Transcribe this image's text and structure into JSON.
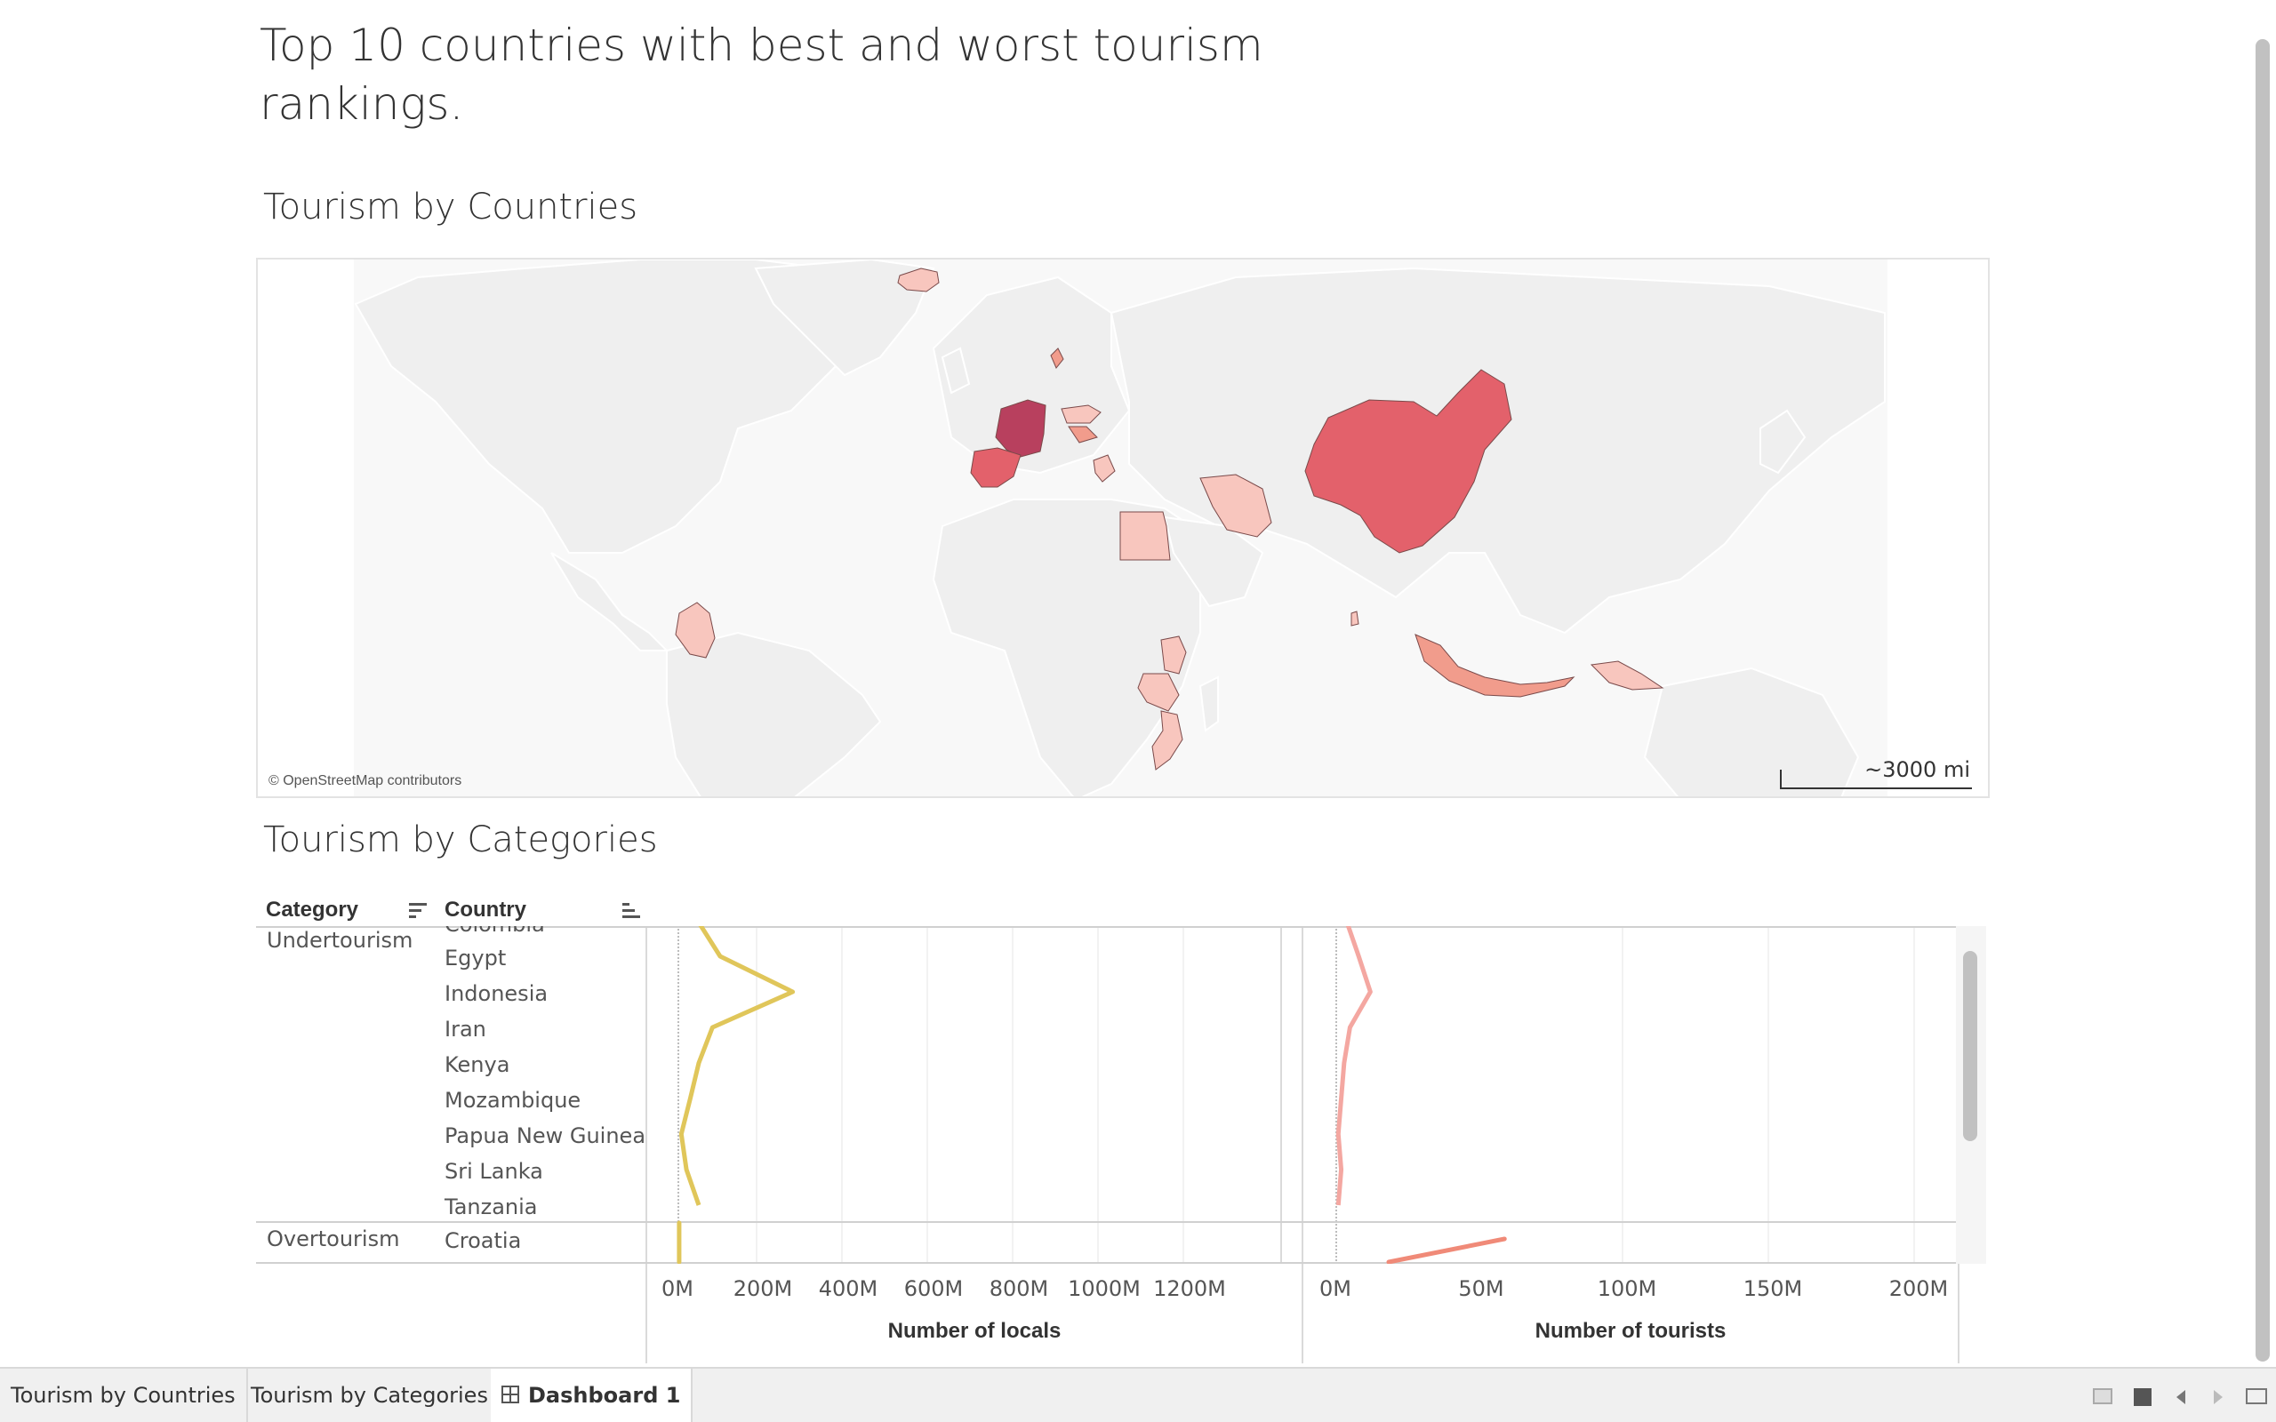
{
  "dashboard": {
    "title": "Top 10 countries with best and worst tourism rankings."
  },
  "map_section": {
    "title": "Tourism by Countries",
    "credit": "© OpenStreetMap contributors",
    "scale": "~3000 mi",
    "highlighted_countries": [
      "Iceland",
      "Denmark",
      "France",
      "Spain",
      "Austria",
      "Croatia",
      "Greece",
      "Egypt",
      "Iran",
      "China",
      "Colombia",
      "Kenya",
      "Tanzania",
      "Mozambique",
      "Sri Lanka",
      "Indonesia",
      "Papua New Guinea"
    ],
    "colors": {
      "darkest": "#b8405e",
      "dark": "#e3616b",
      "medium": "#f19c8c",
      "light": "#f8c6be",
      "land": "#efefef"
    }
  },
  "categories_section": {
    "title": "Tourism by Categories",
    "col_category": "Category",
    "col_country": "Country",
    "groups": [
      {
        "category": "Undertourism",
        "countries": [
          "Colombia",
          "Egypt",
          "Indonesia",
          "Iran",
          "Kenya",
          "Mozambique",
          "Papua New Guinea",
          "Sri Lanka",
          "Tanzania"
        ]
      },
      {
        "category": "Overtourism",
        "countries": [
          "Croatia"
        ]
      }
    ]
  },
  "chart_data": [
    {
      "type": "line",
      "xlabel": "Number of locals",
      "ylabel": "",
      "xlim": [
        0,
        1300
      ],
      "x_ticks": [
        "0M",
        "200M",
        "400M",
        "600M",
        "800M",
        "1000M",
        "1200M"
      ],
      "categories": [
        "Colombia",
        "Egypt",
        "Indonesia",
        "Iran",
        "Kenya",
        "Mozambique",
        "Papua New Guinea",
        "Sri Lanka",
        "Tanzania",
        "Croatia"
      ],
      "values": [
        50,
        100,
        270,
        82,
        50,
        30,
        9,
        21,
        50,
        4
      ],
      "color": "#e0c65a"
    },
    {
      "type": "line",
      "xlabel": "Number of tourists",
      "ylabel": "",
      "xlim": [
        0,
        210
      ],
      "x_ticks": [
        "0M",
        "50M",
        "100M",
        "150M",
        "200M"
      ],
      "categories": [
        "Colombia",
        "Egypt",
        "Indonesia",
        "Iran",
        "Kenya",
        "Mozambique",
        "Papua New Guinea",
        "Sri Lanka",
        "Tanzania",
        "Croatia"
      ],
      "values": [
        4,
        8,
        12,
        5,
        3,
        2,
        1,
        2,
        1,
        58
      ],
      "color": "#f4a7a1"
    }
  ],
  "tabs": [
    "Tourism by Countries",
    "Tourism by Categories",
    "Dashboard 1"
  ]
}
